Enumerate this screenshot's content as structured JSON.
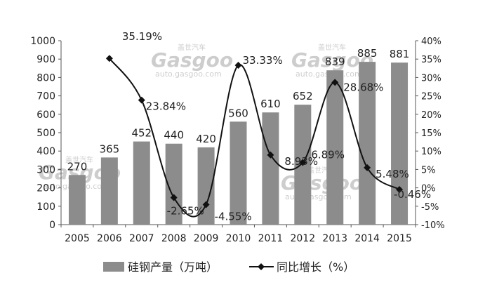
{
  "chart_data": {
    "type": "bar",
    "categories": [
      "2005",
      "2006",
      "2007",
      "2008",
      "2009",
      "2010",
      "2011",
      "2012",
      "2013",
      "2014",
      "2015"
    ],
    "series": [
      {
        "name": "硅钢产量（万吨）",
        "type": "bar",
        "axis": "left",
        "values": [
          270,
          365,
          452,
          440,
          420,
          560,
          610,
          652,
          839,
          885,
          881
        ],
        "labels": [
          "270",
          "365",
          "452",
          "440",
          "420",
          "560",
          "610",
          "652",
          "839",
          "885",
          "881"
        ],
        "color": "#8c8c8c"
      },
      {
        "name": "同比增长（%）",
        "type": "line",
        "axis": "right",
        "values": [
          null,
          35.19,
          23.84,
          -2.65,
          -4.55,
          33.33,
          8.93,
          6.89,
          28.68,
          5.48,
          -0.46
        ],
        "labels": [
          "",
          "35.19%",
          "23.84%",
          "-2.65%",
          "-4.55%",
          "33.33%",
          "8.93%",
          "6.89%",
          "28.68%",
          "5.48%",
          "-0.46%"
        ],
        "color": "#111111",
        "smooth": true,
        "marker": "diamond"
      }
    ],
    "y_left": {
      "min": 0,
      "max": 1000,
      "step": 100,
      "ticks": [
        "0",
        "100",
        "200",
        "300",
        "400",
        "500",
        "600",
        "700",
        "800",
        "900",
        "1000"
      ]
    },
    "y_right": {
      "min": -10,
      "max": 40,
      "step": 5,
      "ticks": [
        "-10%",
        "-5%",
        "0%",
        "5%",
        "10%",
        "15%",
        "20%",
        "25%",
        "30%",
        "35%",
        "40%"
      ]
    },
    "legend_position": "bottom",
    "grid": false
  },
  "watermark": {
    "brand": "Gasgoo",
    "cn": "盖世汽车",
    "url": "auto.gasgoo.com"
  }
}
